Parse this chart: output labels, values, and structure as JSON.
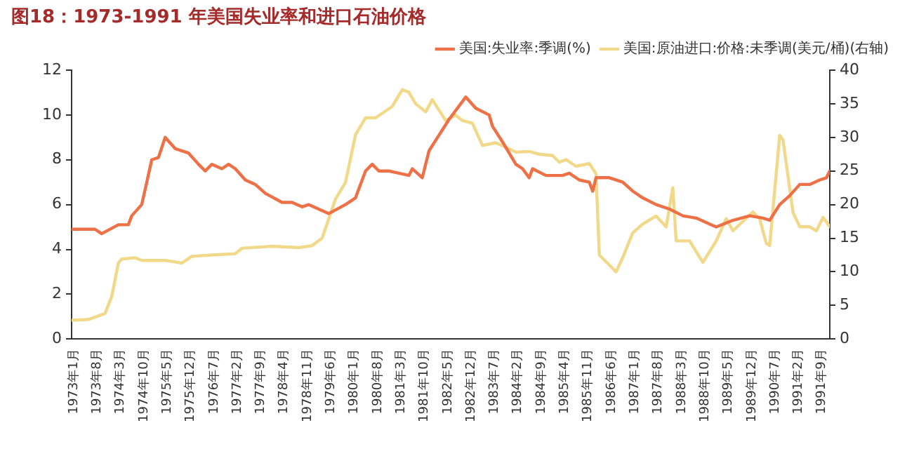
{
  "chart_data": {
    "type": "line",
    "title": "图18：1973-1991 年美国失业率和进口石油价格",
    "xlim": [
      "1973-01",
      "1991-12"
    ],
    "xticks": [
      {
        "value": "1973-01",
        "label": "1973年1月"
      },
      {
        "value": "1973-08",
        "label": "1973年8月"
      },
      {
        "value": "1974-03",
        "label": "1974年3月"
      },
      {
        "value": "1974-10",
        "label": "1974年10月"
      },
      {
        "value": "1975-05",
        "label": "1975年5月"
      },
      {
        "value": "1975-12",
        "label": "1975年12月"
      },
      {
        "value": "1976-07",
        "label": "1976年7月"
      },
      {
        "value": "1977-02",
        "label": "1977年2月"
      },
      {
        "value": "1977-09",
        "label": "1977年9月"
      },
      {
        "value": "1978-04",
        "label": "1978年4月"
      },
      {
        "value": "1978-11",
        "label": "1978年11月"
      },
      {
        "value": "1979-06",
        "label": "1979年6月"
      },
      {
        "value": "1980-01",
        "label": "1980年1月"
      },
      {
        "value": "1980-08",
        "label": "1980年8月"
      },
      {
        "value": "1981-03",
        "label": "1981年3月"
      },
      {
        "value": "1981-10",
        "label": "1981年10月"
      },
      {
        "value": "1982-05",
        "label": "1982年5月"
      },
      {
        "value": "1982-12",
        "label": "1982年12月"
      },
      {
        "value": "1983-07",
        "label": "1983年7月"
      },
      {
        "value": "1984-02",
        "label": "1984年2月"
      },
      {
        "value": "1984-09",
        "label": "1984年9月"
      },
      {
        "value": "1985-04",
        "label": "1985年4月"
      },
      {
        "value": "1985-11",
        "label": "1985年11月"
      },
      {
        "value": "1986-06",
        "label": "1986年6月"
      },
      {
        "value": "1987-01",
        "label": "1987年1月"
      },
      {
        "value": "1987-08",
        "label": "1987年8月"
      },
      {
        "value": "1988-03",
        "label": "1988年3月"
      },
      {
        "value": "1988-10",
        "label": "1988年10月"
      },
      {
        "value": "1989-05",
        "label": "1989年5月"
      },
      {
        "value": "1989-12",
        "label": "1989年12月"
      },
      {
        "value": "1990-07",
        "label": "1990年7月"
      },
      {
        "value": "1991-02",
        "label": "1991年2月"
      },
      {
        "value": "1991-09",
        "label": "1991年9月"
      }
    ],
    "ylim": [
      0,
      12
    ],
    "yticks": [
      0,
      2,
      4,
      6,
      8,
      10,
      12
    ],
    "y2lim": [
      0,
      40
    ],
    "y2ticks": [
      0,
      5,
      10,
      15,
      20,
      25,
      30,
      35,
      40
    ],
    "grid": false,
    "legend": "top",
    "marker": "none",
    "line_style": "solid",
    "series": [
      {
        "name": "美国:失业率:季调(%)",
        "color": "#ee7046",
        "x": [
          "1973-01",
          "1973-08",
          "1973-10",
          "1974-03",
          "1974-06",
          "1974-07",
          "1974-10",
          "1975-01",
          "1975-03",
          "1975-05",
          "1975-08",
          "1975-12",
          "1976-03",
          "1976-05",
          "1976-07",
          "1976-10",
          "1976-12",
          "1977-02",
          "1977-05",
          "1977-08",
          "1977-11",
          "1978-04",
          "1978-07",
          "1978-10",
          "1978-12",
          "1979-06",
          "1979-11",
          "1980-02",
          "1980-05",
          "1980-07",
          "1980-09",
          "1980-12",
          "1981-03",
          "1981-06",
          "1981-07",
          "1981-10",
          "1981-12",
          "1982-03",
          "1982-06",
          "1982-11",
          "1983-02",
          "1983-06",
          "1983-07",
          "1983-10",
          "1984-02",
          "1984-04",
          "1984-06",
          "1984-07",
          "1984-11",
          "1985-04",
          "1985-06",
          "1985-09",
          "1985-12",
          "1986-01",
          "1986-02",
          "1986-06",
          "1986-10",
          "1987-01",
          "1987-04",
          "1987-08",
          "1987-12",
          "1988-04",
          "1988-08",
          "1989-02",
          "1989-07",
          "1989-12",
          "1990-04",
          "1990-06",
          "1990-09",
          "1990-12",
          "1991-03",
          "1991-06",
          "1991-09",
          "1991-11",
          "1991-12"
        ],
        "values": [
          4.9,
          4.9,
          4.7,
          5.1,
          5.1,
          5.5,
          6.0,
          8.0,
          8.1,
          9.0,
          8.5,
          8.3,
          7.8,
          7.5,
          7.8,
          7.6,
          7.8,
          7.6,
          7.1,
          6.9,
          6.5,
          6.1,
          6.1,
          5.9,
          6.0,
          5.6,
          6.0,
          6.3,
          7.5,
          7.8,
          7.5,
          7.5,
          7.4,
          7.3,
          7.6,
          7.2,
          8.4,
          9.1,
          9.8,
          10.8,
          10.3,
          10.0,
          9.5,
          8.8,
          7.8,
          7.6,
          7.2,
          7.6,
          7.3,
          7.3,
          7.4,
          7.1,
          7.0,
          6.6,
          7.2,
          7.2,
          7.0,
          6.6,
          6.3,
          6.0,
          5.8,
          5.5,
          5.4,
          5.0,
          5.3,
          5.5,
          5.4,
          5.3,
          6.0,
          6.4,
          6.9,
          6.9,
          7.1,
          7.2,
          7.5
        ]
      },
      {
        "name": "美国:原油进口:价格:未季调(美元/桶)(右轴)",
        "color": "#f2d98a",
        "axis": "y2",
        "x": [
          "1973-01",
          "1973-06",
          "1973-11",
          "1974-01",
          "1974-03",
          "1974-04",
          "1974-08",
          "1974-10",
          "1975-05",
          "1975-10",
          "1976-01",
          "1976-07",
          "1977-02",
          "1977-04",
          "1978-01",
          "1978-09",
          "1979-01",
          "1979-04",
          "1979-06",
          "1979-08",
          "1979-11",
          "1980-02",
          "1980-05",
          "1980-08",
          "1981-01",
          "1981-04",
          "1981-06",
          "1981-08",
          "1981-11",
          "1982-01",
          "1982-05",
          "1982-08",
          "1982-10",
          "1983-01",
          "1983-04",
          "1983-08",
          "1983-12",
          "1984-02",
          "1984-06",
          "1984-09",
          "1985-01",
          "1985-03",
          "1985-05",
          "1985-08",
          "1985-12",
          "1986-02",
          "1986-03",
          "1986-08",
          "1986-10",
          "1987-01",
          "1987-04",
          "1987-08",
          "1987-11",
          "1988-01",
          "1988-02",
          "1988-06",
          "1988-10",
          "1989-02",
          "1989-05",
          "1989-07",
          "1990-01",
          "1990-03",
          "1990-05",
          "1990-06",
          "1990-09",
          "1990-10",
          "1991-01",
          "1991-03",
          "1991-06",
          "1991-08",
          "1991-10",
          "1991-12"
        ],
        "values": [
          2.8,
          2.9,
          3.8,
          6.3,
          11.3,
          11.9,
          12.1,
          11.7,
          11.7,
          11.3,
          12.3,
          12.5,
          12.7,
          13.5,
          13.8,
          13.6,
          13.9,
          15.0,
          17.9,
          20.8,
          23.3,
          30.4,
          32.9,
          32.9,
          34.6,
          37.1,
          36.7,
          35.0,
          33.8,
          35.6,
          32.5,
          33.3,
          32.5,
          32.1,
          28.8,
          29.2,
          28.3,
          27.8,
          27.9,
          27.5,
          27.3,
          26.3,
          26.7,
          25.7,
          26.1,
          24.6,
          12.5,
          10.0,
          12.1,
          15.8,
          17.1,
          18.3,
          16.7,
          22.5,
          14.6,
          14.6,
          11.4,
          14.6,
          17.9,
          16.1,
          18.9,
          17.9,
          14.2,
          13.9,
          30.3,
          29.6,
          18.8,
          16.7,
          16.7,
          16.1,
          18.1,
          16.7
        ]
      }
    ]
  }
}
